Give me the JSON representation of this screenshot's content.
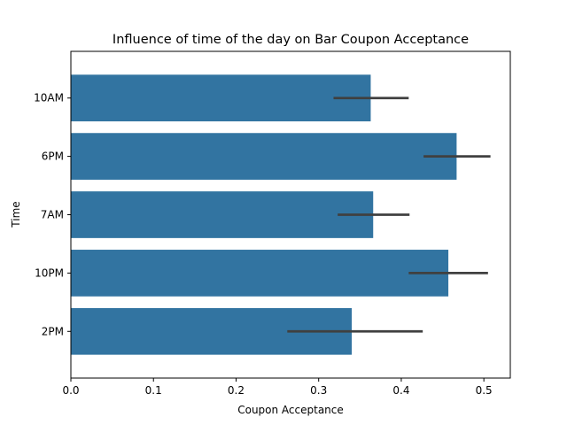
{
  "chart_data": {
    "type": "bar",
    "orientation": "horizontal",
    "title": "Influence of time of the day on Bar Coupon Acceptance",
    "xlabel": "Coupon Acceptance",
    "ylabel": "Time",
    "categories": [
      "10AM",
      "6PM",
      "7AM",
      "10PM",
      "2PM"
    ],
    "values": [
      0.363,
      0.467,
      0.366,
      0.457,
      0.34
    ],
    "error_bars": [
      [
        0.318,
        0.409
      ],
      [
        0.427,
        0.508
      ],
      [
        0.323,
        0.41
      ],
      [
        0.409,
        0.505
      ],
      [
        0.262,
        0.426
      ]
    ],
    "xlim": [
      0,
      0.532
    ],
    "xticks": [
      0.0,
      0.1,
      0.2,
      0.3,
      0.4,
      0.5
    ],
    "xtick_labels": [
      "0.0",
      "0.1",
      "0.2",
      "0.3",
      "0.4",
      "0.5"
    ],
    "grid": false,
    "colors": {
      "bar": "#3274a1",
      "error_bar": "#404040",
      "axes": "#000000"
    }
  }
}
